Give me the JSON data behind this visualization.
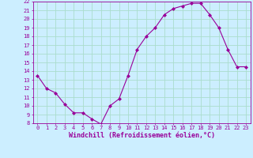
{
  "x": [
    0,
    1,
    2,
    3,
    4,
    5,
    6,
    7,
    8,
    9,
    10,
    11,
    12,
    13,
    14,
    15,
    16,
    17,
    18,
    19,
    20,
    21,
    22,
    23
  ],
  "y": [
    13.5,
    12.0,
    11.5,
    10.2,
    9.2,
    9.2,
    8.5,
    7.9,
    10.0,
    10.8,
    13.5,
    16.5,
    18.0,
    19.0,
    20.5,
    21.2,
    21.5,
    21.8,
    21.8,
    20.5,
    19.0,
    16.5,
    14.5,
    14.5
  ],
  "line_color": "#990099",
  "marker": "D",
  "marker_size": 2.0,
  "bg_color": "#cceeff",
  "grid_color": "#aaddcc",
  "xlabel": "Windchill (Refroidissement éolien,°C)",
  "xlim_min": -0.5,
  "xlim_max": 23.5,
  "ylim_min": 8,
  "ylim_max": 22,
  "xtick_labels": [
    "0",
    "1",
    "2",
    "3",
    "4",
    "5",
    "6",
    "7",
    "8",
    "9",
    "10",
    "11",
    "12",
    "13",
    "14",
    "15",
    "16",
    "17",
    "18",
    "19",
    "20",
    "21",
    "22",
    "23"
  ],
  "ytick_labels": [
    "8",
    "9",
    "10",
    "11",
    "12",
    "13",
    "14",
    "15",
    "16",
    "17",
    "18",
    "19",
    "20",
    "21",
    "22"
  ],
  "tick_fontsize": 5.0,
  "xlabel_fontsize": 6.0,
  "label_color": "#990099",
  "spine_color": "#990099"
}
